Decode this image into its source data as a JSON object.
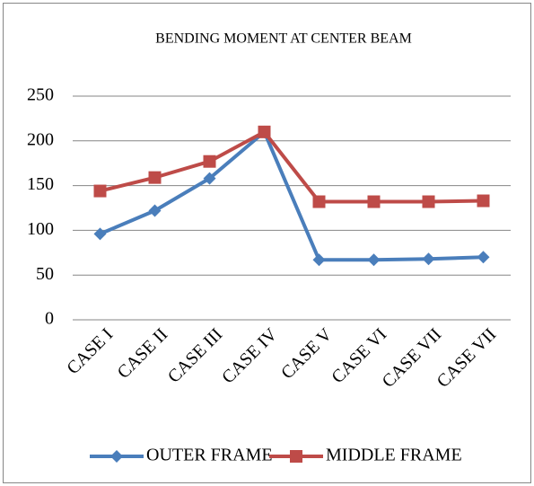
{
  "chart_data": {
    "type": "line",
    "title": "BENDING MOMENT AT CENTER BEAM",
    "categories": [
      "CASE I",
      "CASE II",
      "CASE III",
      "CASE IV",
      "CASE V",
      "CASE VI",
      "CASE VII",
      "CASE VII"
    ],
    "series": [
      {
        "name": "OUTER FRAME",
        "color": "#4a7ebb",
        "marker": "diamond",
        "values": [
          96,
          122,
          158,
          210,
          67,
          67,
          68,
          70
        ]
      },
      {
        "name": "MIDDLE FRAME",
        "color": "#be4b48",
        "marker": "square",
        "values": [
          144,
          159,
          177,
          210,
          132,
          132,
          132,
          133
        ]
      }
    ],
    "ylim": [
      0,
      250
    ],
    "yticks": [
      0,
      50,
      100,
      150,
      200,
      250
    ],
    "grid": true,
    "legend": "bottom"
  }
}
